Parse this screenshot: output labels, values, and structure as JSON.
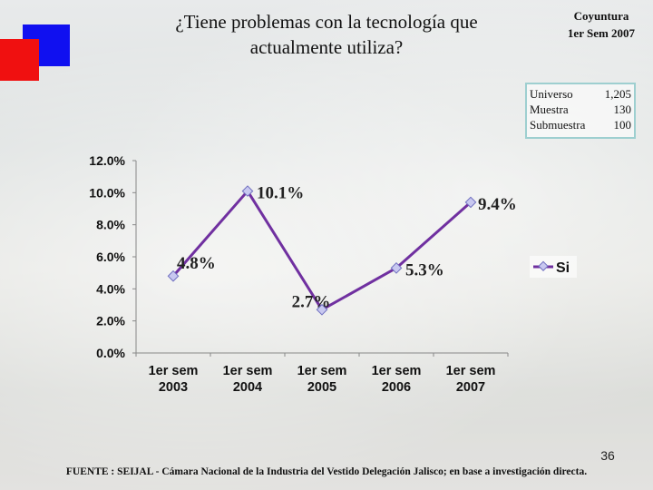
{
  "title_line1": "¿Tiene problemas con la tecnología que",
  "title_line2": "actualmente utiliza?",
  "period_line1": "Coyuntura",
  "period_line2": "1er Sem 2007",
  "sample": {
    "universe_label": "Universo",
    "universe_value": "1,205",
    "sample_label": "Muestra",
    "sample_value": "130",
    "subsample_label": "Submuestra",
    "subsample_value": "100"
  },
  "footer": "FUENTE : SEIJAL - Cámara Nacional de la Industria del Vestido Delegación Jalisco; en base a investigación directa.",
  "page_number": "36",
  "colors": {
    "line": "#7030a0",
    "marker_fill": "#c8c8f0",
    "marker_stroke": "#7070c0",
    "accent_blue": "#1010f0",
    "accent_red": "#f01010"
  },
  "chart_data": {
    "type": "line",
    "categories": [
      "1er sem 2003",
      "1er sem 2004",
      "1er sem 2005",
      "1er sem 2006",
      "1er sem 2007"
    ],
    "category_lines": [
      [
        "1er sem",
        "2003"
      ],
      [
        "1er sem",
        "2004"
      ],
      [
        "1er sem",
        "2005"
      ],
      [
        "1er sem",
        "2006"
      ],
      [
        "1er sem",
        "2007"
      ]
    ],
    "series": [
      {
        "name": "Si",
        "values": [
          4.8,
          10.1,
          2.7,
          5.3,
          9.4
        ],
        "labels": [
          "4.8%",
          "10.1%",
          "2.7%",
          "5.3%",
          "9.4%"
        ]
      }
    ],
    "yticks": [
      "0.0%",
      "2.0%",
      "4.0%",
      "6.0%",
      "8.0%",
      "10.0%",
      "12.0%"
    ],
    "ylim": [
      0,
      12
    ],
    "grid": false,
    "legend_position": "right"
  }
}
